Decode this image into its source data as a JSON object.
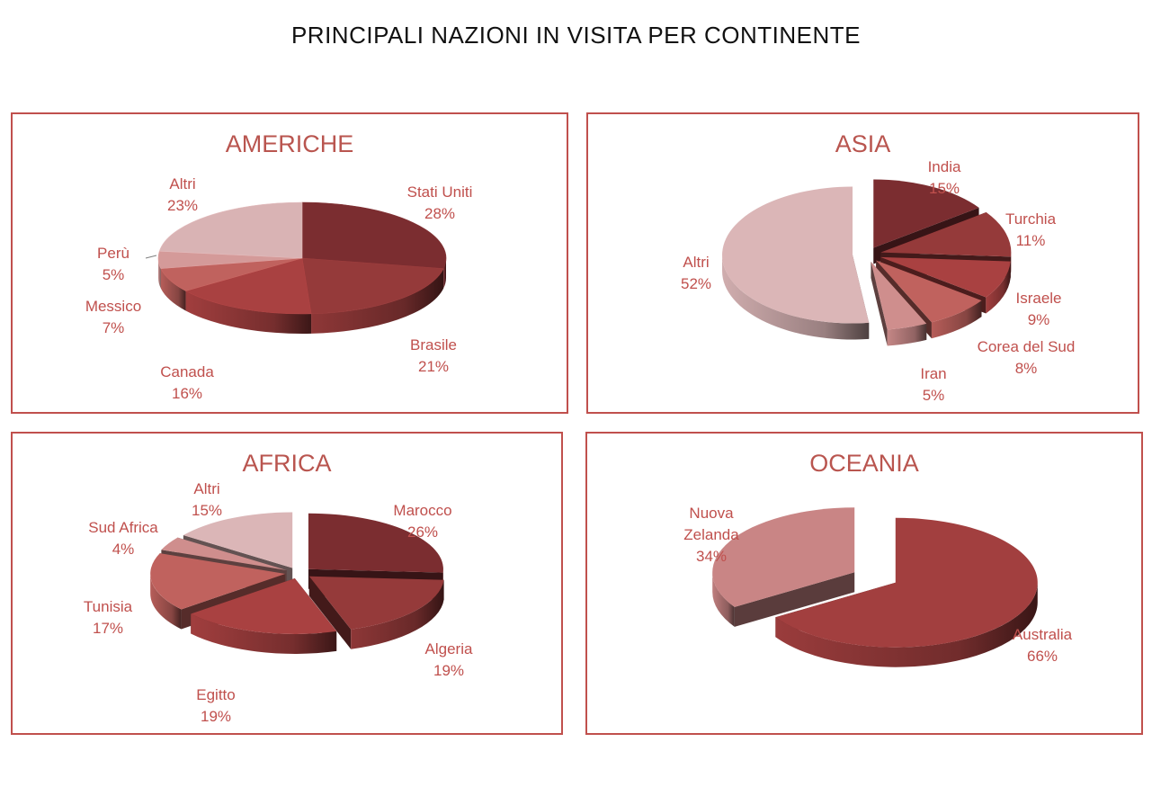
{
  "title": "PRINCIPALI NAZIONI IN VISITA PER CONTINENTE",
  "chart_data": [
    {
      "type": "pie",
      "title": "AMERICHE",
      "categories": [
        "Stati Uniti",
        "Brasile",
        "Canada",
        "Messico",
        "Perù",
        "Altri"
      ],
      "values": [
        28,
        21,
        16,
        7,
        5,
        23
      ],
      "value_labels": [
        "28%",
        "21%",
        "16%",
        "7%",
        "5%",
        "23%"
      ],
      "colors": [
        "#7b2d30",
        "#953a3a",
        "#a94141",
        "#c0625e",
        "#d49a99",
        "#d9b3b4"
      ],
      "exploded": []
    },
    {
      "type": "pie",
      "title": "ASIA",
      "categories": [
        "India",
        "Turchia",
        "Israele",
        "Corea del Sud",
        "Iran",
        "Altri"
      ],
      "values": [
        15,
        11,
        9,
        8,
        5,
        52
      ],
      "value_labels": [
        "15%",
        "11%",
        "9%",
        "8%",
        "5%",
        "52%"
      ],
      "colors": [
        "#7b2d30",
        "#953a3a",
        "#a94141",
        "#c0625e",
        "#cf8e8d",
        "#dbb6b7"
      ],
      "exploded": [
        0,
        1,
        2,
        3,
        4,
        5
      ]
    },
    {
      "type": "pie",
      "title": "AFRICA",
      "categories": [
        "Marocco",
        "Algeria",
        "Egitto",
        "Tunisia",
        "Sud Africa",
        "Altri"
      ],
      "values": [
        26,
        19,
        19,
        17,
        4,
        15
      ],
      "value_labels": [
        "26%",
        "19%",
        "19%",
        "17%",
        "4%",
        "15%"
      ],
      "colors": [
        "#7b2d30",
        "#953a3a",
        "#a94141",
        "#c0625e",
        "#cf8e8d",
        "#dbb6b7"
      ],
      "exploded": [
        0,
        1,
        2,
        3,
        4,
        5
      ]
    },
    {
      "type": "pie",
      "title": "OCEANIA",
      "categories": [
        "Australia",
        "Nuova Zelanda"
      ],
      "values": [
        66,
        34
      ],
      "value_labels": [
        "66%",
        "34%"
      ],
      "colors": [
        "#a23f3f",
        "#c98585"
      ],
      "exploded": [
        0,
        1
      ]
    }
  ]
}
